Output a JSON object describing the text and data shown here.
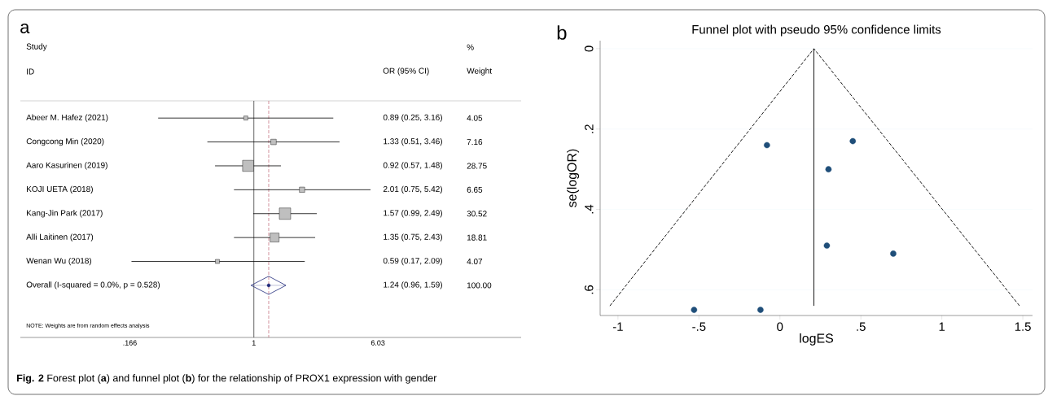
{
  "chart_data": [
    {
      "type": "scatter",
      "orientation": "horizontal",
      "log": "x",
      "tick_labels": "x",
      "categories": [
        "Abeer M. Hafez (2021)",
        "Congcong Min (2020)",
        "Aaro Kasurinen (2019)",
        "KOJI UETA (2018)",
        "Kang-Jin Park (2017)",
        "Alli Laitinen (2017)",
        "Wenan Wu (2018)",
        "Overall  (I-squared = 0.0%, p = 0.528)"
      ],
      "xlim": [
        0.034,
        48
      ],
      "xticks": [
        {
          "value": 0.166,
          "label": ".166"
        },
        1,
        {
          "value": 6.03,
          "label": "6.03"
        }
      ],
      "series": [
        {
          "type": "bubble",
          "marker": "square",
          "color": "#000000",
          "values": [
            0.89,
            1.33,
            0.92,
            2.01,
            1.57,
            1.35,
            0.59,
            null
          ],
          "errors": [
            [
              0.25,
              3.16
            ],
            [
              0.51,
              3.46
            ],
            [
              0.57,
              1.48
            ],
            [
              0.75,
              5.42
            ],
            [
              0.99,
              2.49
            ],
            [
              0.75,
              2.43
            ],
            [
              0.17,
              2.09
            ],
            null
          ],
          "sizes": [
            0.13,
            0.23,
            0.94,
            0.22,
            1,
            0.62,
            0.13,
            null
          ]
        },
        {
          "type": "scatter",
          "marker": "diamond",
          "color": "#1f2a7a",
          "values": [
            null,
            null,
            null,
            null,
            null,
            null,
            null,
            1.24
          ],
          "errors": [
            null,
            null,
            null,
            null,
            null,
            null,
            null,
            [
              0.96,
              1.59
            ]
          ]
        }
      ],
      "ref_lines": [
        {
          "axis": "x",
          "value": 1,
          "color": "#000000",
          "line_style": "solid"
        },
        {
          "axis": "x",
          "value": 1.24,
          "color": "#b5485a",
          "line_style": "dashed"
        }
      ],
      "annotations": [
        "a",
        "Study",
        "ID",
        "OR (95% CI)",
        "%",
        "Weight",
        "NOTE: Weights are from random effects analysis",
        "**Fig. 2**  Forest plot (**a**) and funnel plot (**b**) for the relationship of PROX1 expression with gender",
        "0.89 (0.25, 3.16)",
        "1.33 (0.51, 3.46)",
        "0.92 (0.57, 1.48)",
        "2.01 (0.75, 5.42)",
        "1.57 (0.99, 2.49)",
        "1.35 (0.75, 2.43)",
        "0.59 (0.17, 2.09)",
        "1.24 (0.96, 1.59)",
        "4.05",
        "7.16",
        "28.75",
        "6.65",
        "30.52",
        "18.81",
        "4.07",
        "100.00"
      ]
    },
    {
      "type": "scatter",
      "title": "Funnel plot with pseudo 95% confidence limits",
      "xlabel": "logES",
      "ylabel": "se(logOR)",
      "annotations": [
        "b"
      ],
      "grid": "y",
      "xlim": [
        -1.11,
        1.56
      ],
      "ylim": [
        0.664,
        -0.02
      ],
      "xticks": [
        -1,
        {
          "value": -0.5,
          "label": "-.5"
        },
        0,
        {
          "value": 0.5,
          "label": ".5"
        },
        1,
        1.5
      ],
      "yticks": [
        0,
        {
          "value": 0.2,
          "label": ".2"
        },
        {
          "value": 0.4,
          "label": ".4"
        },
        {
          "value": 0.6,
          "label": ".6"
        }
      ],
      "series": [
        {
          "type": "scatter",
          "marker": "circle",
          "color": "#1f4e79",
          "x": [
            -0.12,
            0.29,
            -0.08,
            0.7,
            0.45,
            0.3,
            -0.53
          ],
          "values": [
            0.65,
            0.49,
            0.24,
            0.51,
            0.23,
            0.3,
            0.65
          ]
        },
        {
          "type": "line",
          "line_style": "dashed",
          "color": "#000000",
          "x": [
            -1.05,
            0.21,
            1.48
          ],
          "values": [
            0.64,
            0,
            0.64
          ]
        },
        {
          "type": "line",
          "line_style": "solid",
          "color": "#000000",
          "x": [
            0.21,
            0.21
          ],
          "values": [
            0,
            0.64
          ]
        }
      ]
    }
  ]
}
